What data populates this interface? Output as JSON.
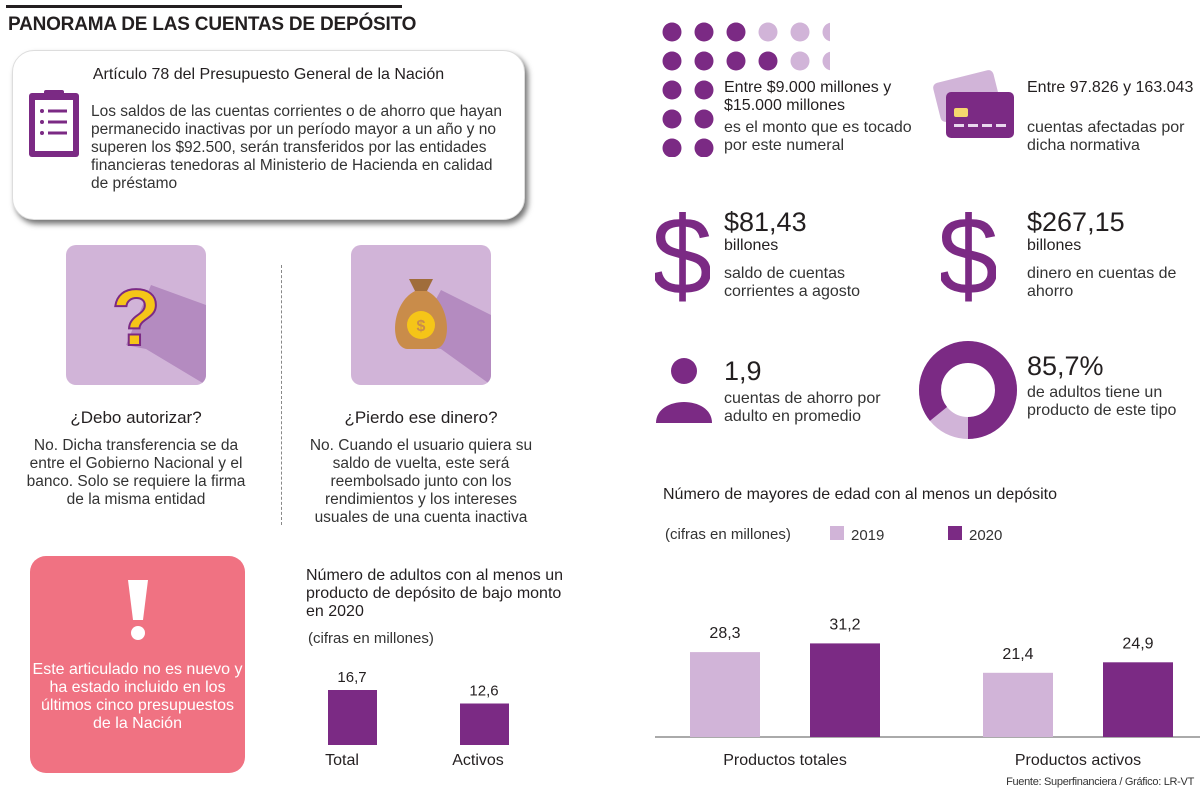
{
  "title": "PANORAMA DE LAS CUENTAS DE DEPÓSITO",
  "article": {
    "heading": "Artículo 78 del Presupuesto General de la Nación",
    "body": "Los saldos de las cuentas corrientes o de ahorro que hayan permanecido inactivas por un período mayor a un año y no superen los $92.500, serán transferidos por las entidades financieras tenedoras al Ministerio de Hacienda en calidad de préstamo",
    "icon": "clipboard-list-icon"
  },
  "faq": [
    {
      "question": "¿Debo autorizar?",
      "answer": "No. Dicha transferencia se da entre el Gobierno Nacional y el banco. Solo se requiere la firma de la misma entidad",
      "icon": "question-mark-icon"
    },
    {
      "question": "¿Pierdo ese dinero?",
      "answer": "No. Cuando el usuario quiera su saldo de vuelta, este será reembolsado junto con los rendimientos y los intereses usuales de una cuenta inactiva",
      "icon": "money-bag-icon"
    }
  ],
  "notice": {
    "text": "Este articulado no es nuevo y ha estado incluido en los últimos cinco presupuestos de la Nación",
    "icon": "exclamation-icon"
  },
  "stats": [
    {
      "lead": "Entre $9.000 millones y $15.000 millones",
      "text": "es el monto que es tocado por este numeral",
      "icon": "dot-grid-icon"
    },
    {
      "lead": "Entre 97.826 y 163.043",
      "text": "cuentas afectadas por dicha normativa",
      "icon": "credit-card-icon"
    },
    {
      "value": "$81,43",
      "unit": "billones",
      "text": "saldo de cuentas corrientes a agosto",
      "icon": "dollar-icon"
    },
    {
      "value": "$267,15",
      "unit": "billones",
      "text": "dinero en cuentas de ahorro",
      "icon": "dollar-icon"
    },
    {
      "value": "1,9",
      "text": "cuentas de ahorro por adulto en promedio",
      "icon": "person-icon"
    },
    {
      "value": "85,7%",
      "text": "de adultos tiene un producto de este tipo",
      "icon": "donut-icon",
      "percent": 85.7
    }
  ],
  "colors": {
    "purple": "#7b2a84",
    "lilac": "#d1b4d8",
    "pink": "#f07282",
    "dot_light": "#d1b4d8",
    "dot_dark": "#7b2a84"
  },
  "source": "Fuente: Superfinanciera / Gráfico: LR-VT",
  "chart_data": [
    {
      "type": "bar",
      "title": "Número de adultos con al menos un producto de depósito de bajo monto en 2020",
      "subtitle": "(cifras en millones)",
      "categories": [
        "Total",
        "Activos"
      ],
      "values": [
        16.7,
        12.6
      ],
      "value_labels": [
        "16,7",
        "12,6"
      ],
      "ylim": [
        0,
        20
      ]
    },
    {
      "type": "bar",
      "title": "Número de mayores de edad con al menos un depósito",
      "subtitle": "(cifras en millones)",
      "categories": [
        "Productos totales",
        "Productos activos"
      ],
      "series": [
        {
          "name": "2019",
          "values": [
            28.3,
            21.4
          ],
          "labels": [
            "28,3",
            "21,4"
          ],
          "color": "#d1b4d8"
        },
        {
          "name": "2020",
          "values": [
            31.2,
            24.9
          ],
          "labels": [
            "31,2",
            "24,9"
          ],
          "color": "#7b2a84"
        }
      ],
      "legend": "top",
      "ylim": [
        0,
        40
      ]
    }
  ]
}
